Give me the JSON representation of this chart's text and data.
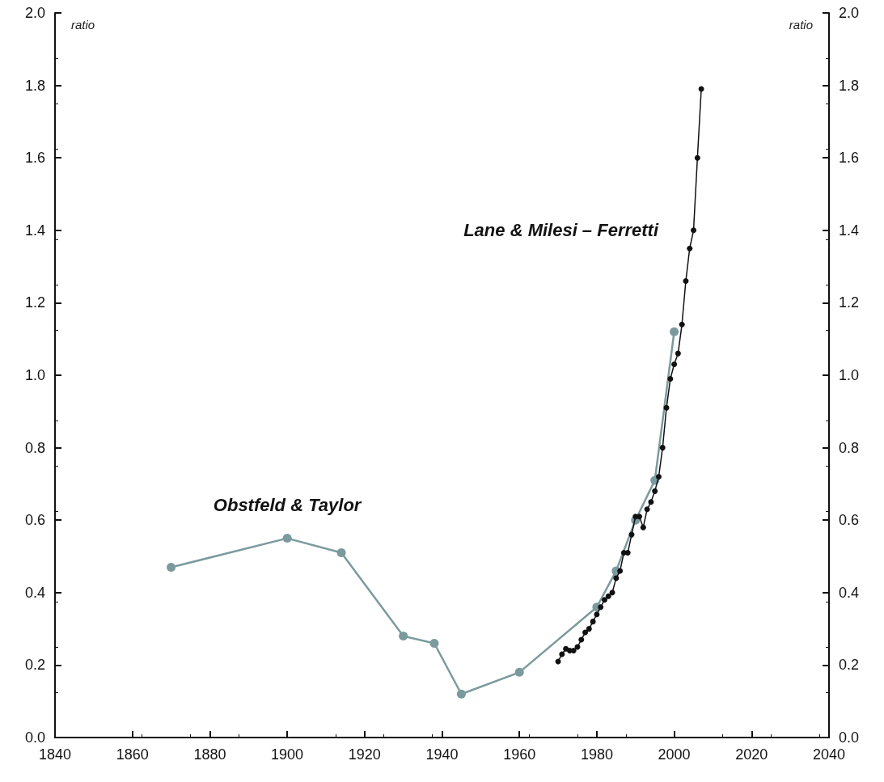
{
  "chart_data": {
    "type": "line",
    "ylabel": "ratio",
    "y2label": "ratio",
    "series": [
      {
        "name": "Obstfeld & Taylor",
        "color": "#7b9a9d",
        "x": [
          1870,
          1900,
          1914,
          1930,
          1938,
          1945,
          1960,
          1980,
          1985,
          1990,
          1995,
          2000
        ],
        "values": [
          0.47,
          0.55,
          0.51,
          0.28,
          0.26,
          0.12,
          0.18,
          0.36,
          0.46,
          0.6,
          0.71,
          1.12
        ]
      },
      {
        "name": "Lane & Milesi – Ferretti",
        "color": "#111111",
        "x": [
          1970,
          1971,
          1972,
          1973,
          1974,
          1975,
          1976,
          1977,
          1978,
          1979,
          1980,
          1981,
          1982,
          1983,
          1984,
          1985,
          1986,
          1987,
          1988,
          1989,
          1990,
          1991,
          1992,
          1993,
          1994,
          1995,
          1996,
          1997,
          1998,
          1999,
          2000,
          2001,
          2002,
          2003,
          2004,
          2005,
          2006,
          2007
        ],
        "values": [
          0.21,
          0.23,
          0.245,
          0.24,
          0.24,
          0.25,
          0.27,
          0.29,
          0.3,
          0.32,
          0.34,
          0.36,
          0.38,
          0.39,
          0.4,
          0.44,
          0.46,
          0.51,
          0.51,
          0.56,
          0.61,
          0.61,
          0.58,
          0.63,
          0.65,
          0.68,
          0.72,
          0.8,
          0.91,
          0.99,
          1.03,
          1.06,
          1.14,
          1.26,
          1.35,
          1.4,
          1.6,
          1.79
        ]
      }
    ],
    "xlim": [
      1840,
      2040
    ],
    "xticks": [
      1840,
      1860,
      1880,
      1900,
      1920,
      1940,
      1960,
      1980,
      2000,
      2020,
      2040
    ],
    "ylim": [
      0,
      2
    ],
    "yticks": [
      {
        "value": 0,
        "label": "0.0"
      },
      {
        "value": 0.2,
        "label": "0.2"
      },
      {
        "value": 0.4,
        "label": "0.4"
      },
      {
        "value": 0.6,
        "label": "0.6"
      },
      {
        "value": 0.8,
        "label": "0.8"
      },
      {
        "value": 1,
        "label": "1.0"
      },
      {
        "value": 1.2,
        "label": "1.2"
      },
      {
        "value": 1.4,
        "label": "1.4"
      },
      {
        "value": 1.6,
        "label": "1.6"
      },
      {
        "value": 1.8,
        "label": "1.8"
      },
      {
        "value": 2,
        "label": "2.0"
      }
    ],
    "y2lim": [
      0,
      2
    ],
    "y2ticks": [
      {
        "value": 0,
        "label": "0.0"
      },
      {
        "value": 0.2,
        "label": "0.2"
      },
      {
        "value": 0.4,
        "label": "0.4"
      },
      {
        "value": 0.6,
        "label": "0.6"
      },
      {
        "value": 0.8,
        "label": "0.8"
      },
      {
        "value": 1,
        "label": "1.0"
      },
      {
        "value": 1.2,
        "label": "1.2"
      },
      {
        "value": 1.4,
        "label": "1.4"
      },
      {
        "value": 1.6,
        "label": "1.6"
      },
      {
        "value": 1.8,
        "label": "1.8"
      },
      {
        "value": 2,
        "label": "2.0"
      }
    ],
    "grid": false,
    "legend": false,
    "marker": "circle",
    "line_style": "solid"
  }
}
